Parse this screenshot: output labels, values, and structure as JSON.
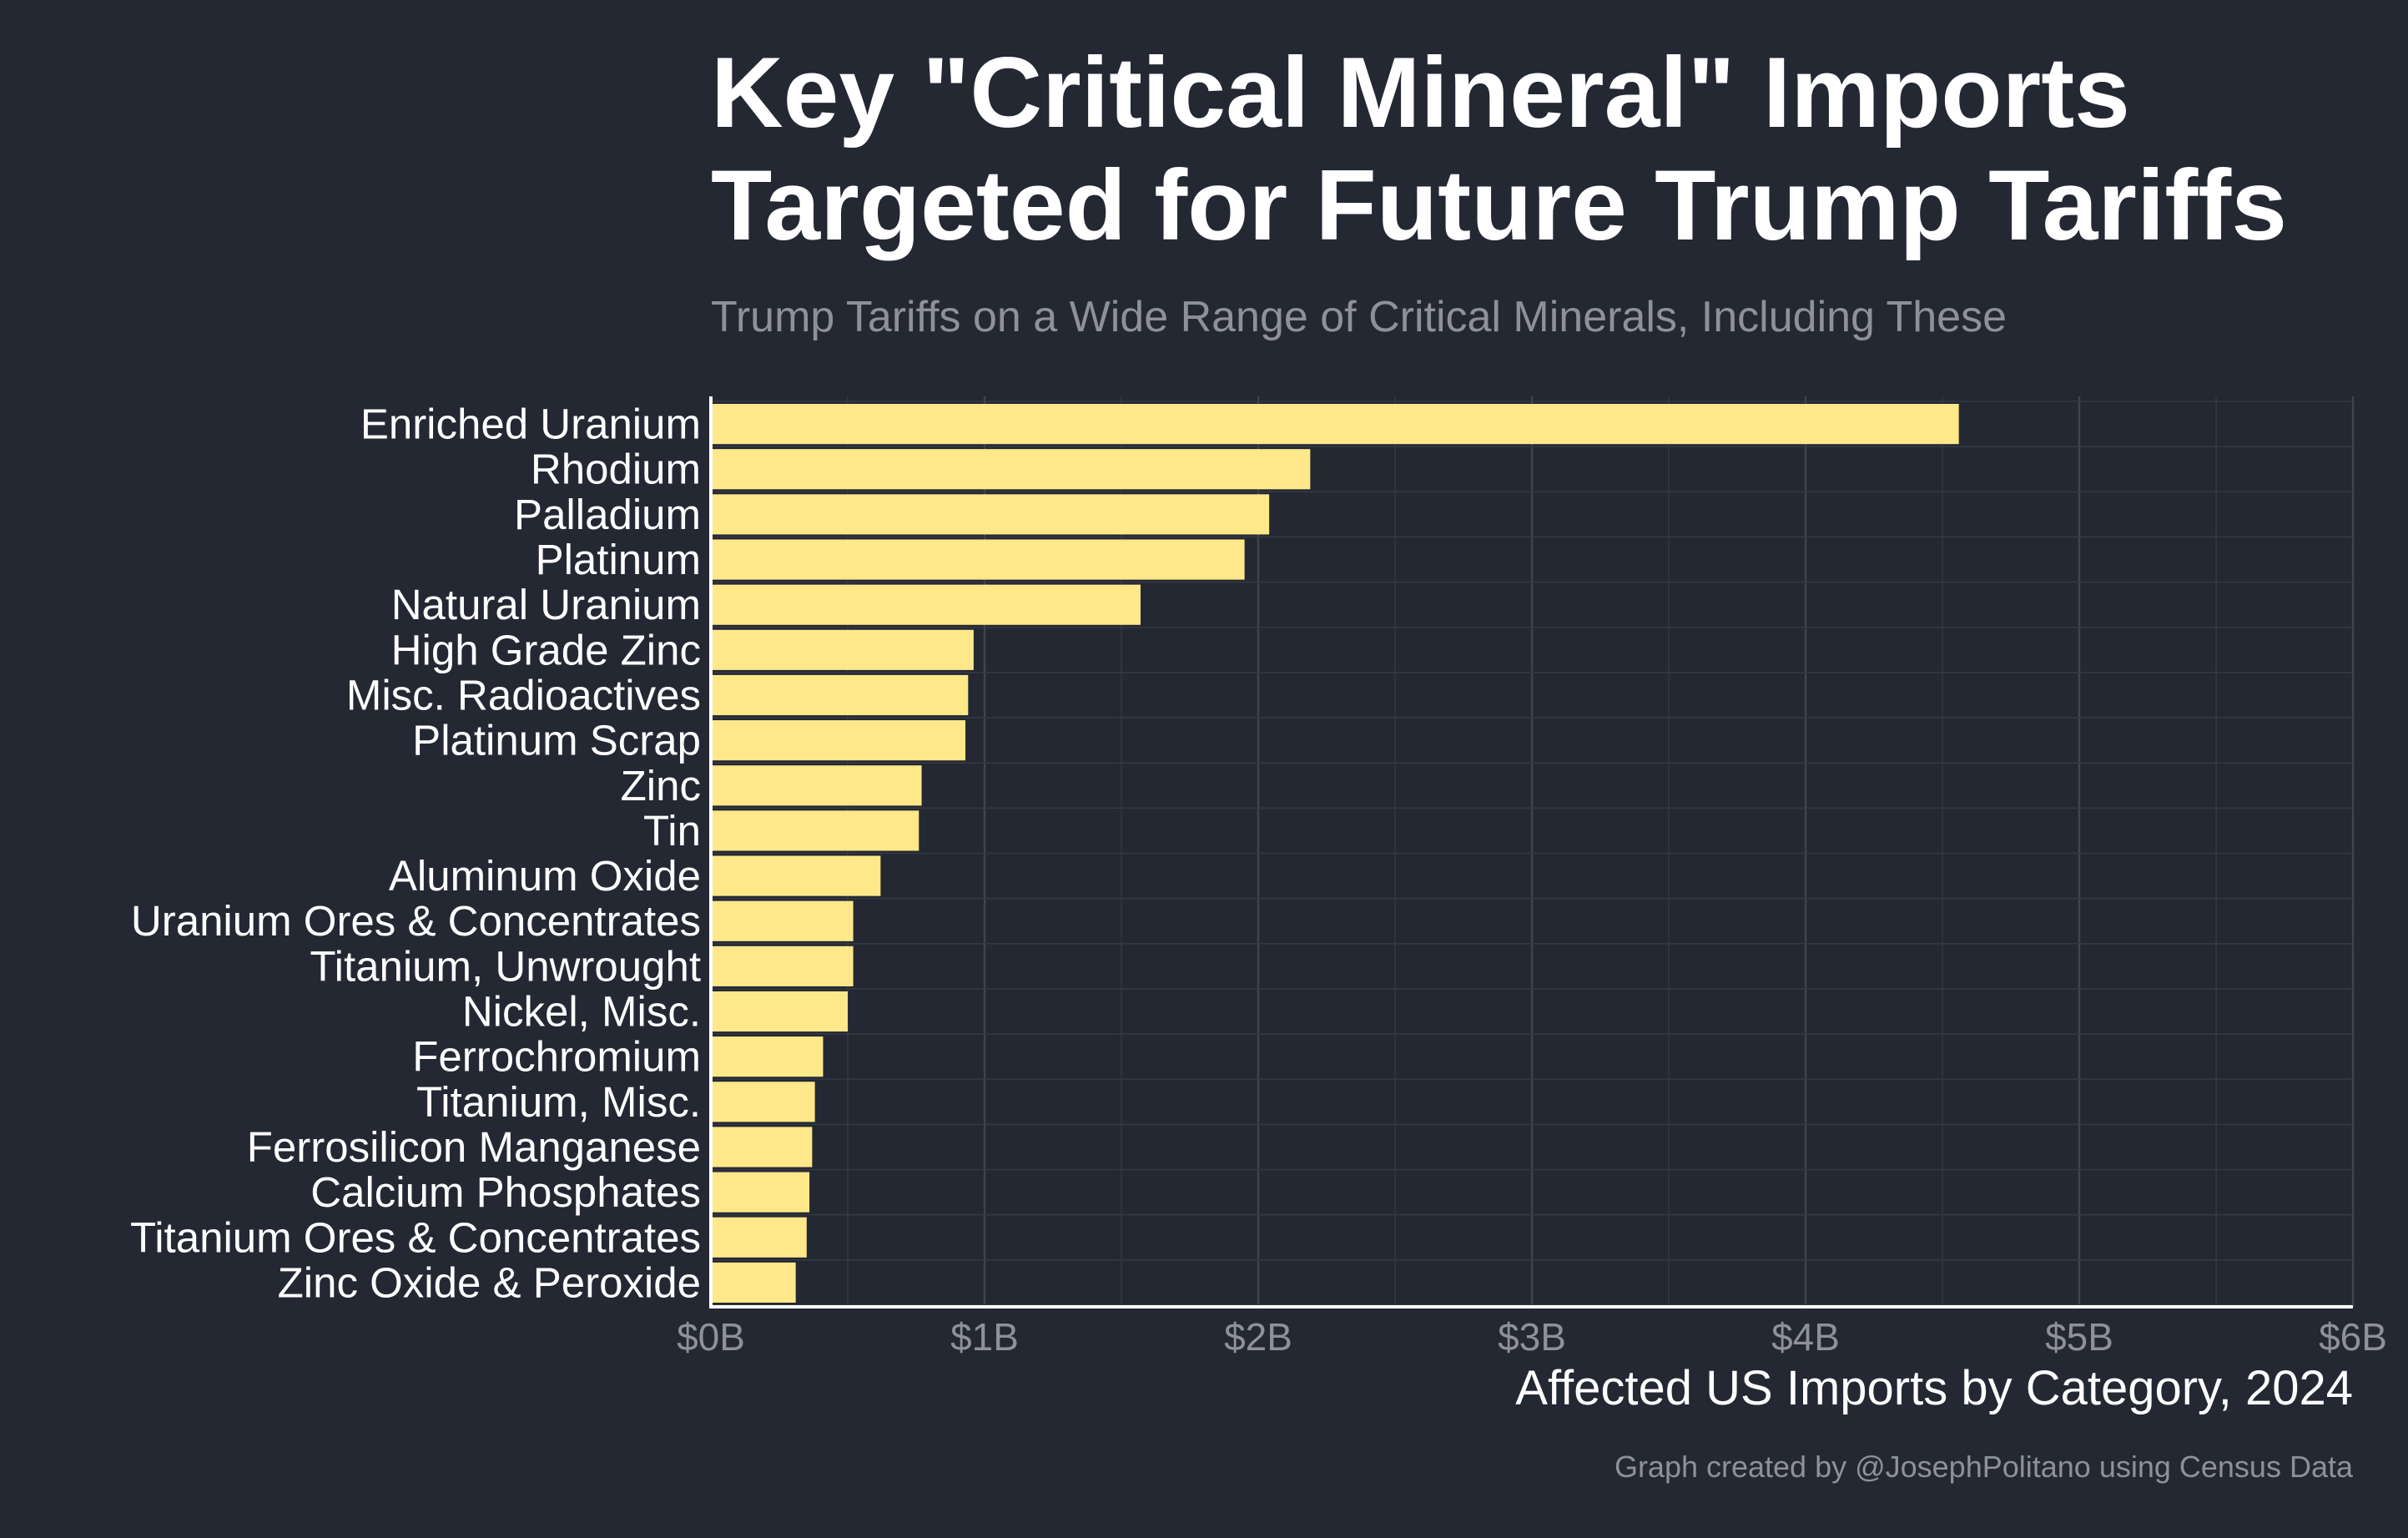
{
  "colors": {
    "background": "#242833",
    "bar": "#ffe889",
    "grid_major": "#40444e",
    "grid_minor": "#343842",
    "axis": "#ffffff",
    "text": "#ffffff",
    "muted_text": "#8e9199"
  },
  "chart_data": {
    "type": "bar",
    "orientation": "horizontal",
    "title": [
      "Key \"Critical Mineral\" Imports",
      "Targeted for Future Trump Tariffs"
    ],
    "subtitle": "Trump Tariffs on a Wide Range of Critical Minerals, Including These",
    "xlabel": "Affected US Imports by Category, 2024",
    "caption": "Graph created by @JosephPolitano using Census Data",
    "categories": [
      "Enriched Uranium",
      "Rhodium",
      "Palladium",
      "Platinum",
      "Natural Uranium",
      "High Grade Zinc",
      "Misc. Radioactives",
      "Platinum Scrap",
      "Zinc",
      "Tin",
      "Aluminum Oxide",
      "Uranium Ores & Concentrates",
      "Titanium, Unwrought",
      "Nickel, Misc.",
      "Ferrochromium",
      "Titanium, Misc.",
      "Ferrosilicon Manganese",
      "Calcium Phosphates",
      "Titanium Ores & Concentrates",
      "Zinc Oxide & Peroxide"
    ],
    "values": [
      4.56,
      2.19,
      2.04,
      1.95,
      1.57,
      0.96,
      0.94,
      0.93,
      0.77,
      0.76,
      0.62,
      0.52,
      0.52,
      0.5,
      0.41,
      0.38,
      0.37,
      0.36,
      0.35,
      0.31
    ],
    "unit": "billion USD",
    "xlim": [
      0,
      6
    ],
    "xticks": [
      0,
      1,
      2,
      3,
      4,
      5,
      6
    ],
    "xtick_labels": [
      "$0B",
      "$1B",
      "$2B",
      "$3B",
      "$4B",
      "$5B",
      "$6B"
    ],
    "grid": true,
    "legend": "none"
  }
}
